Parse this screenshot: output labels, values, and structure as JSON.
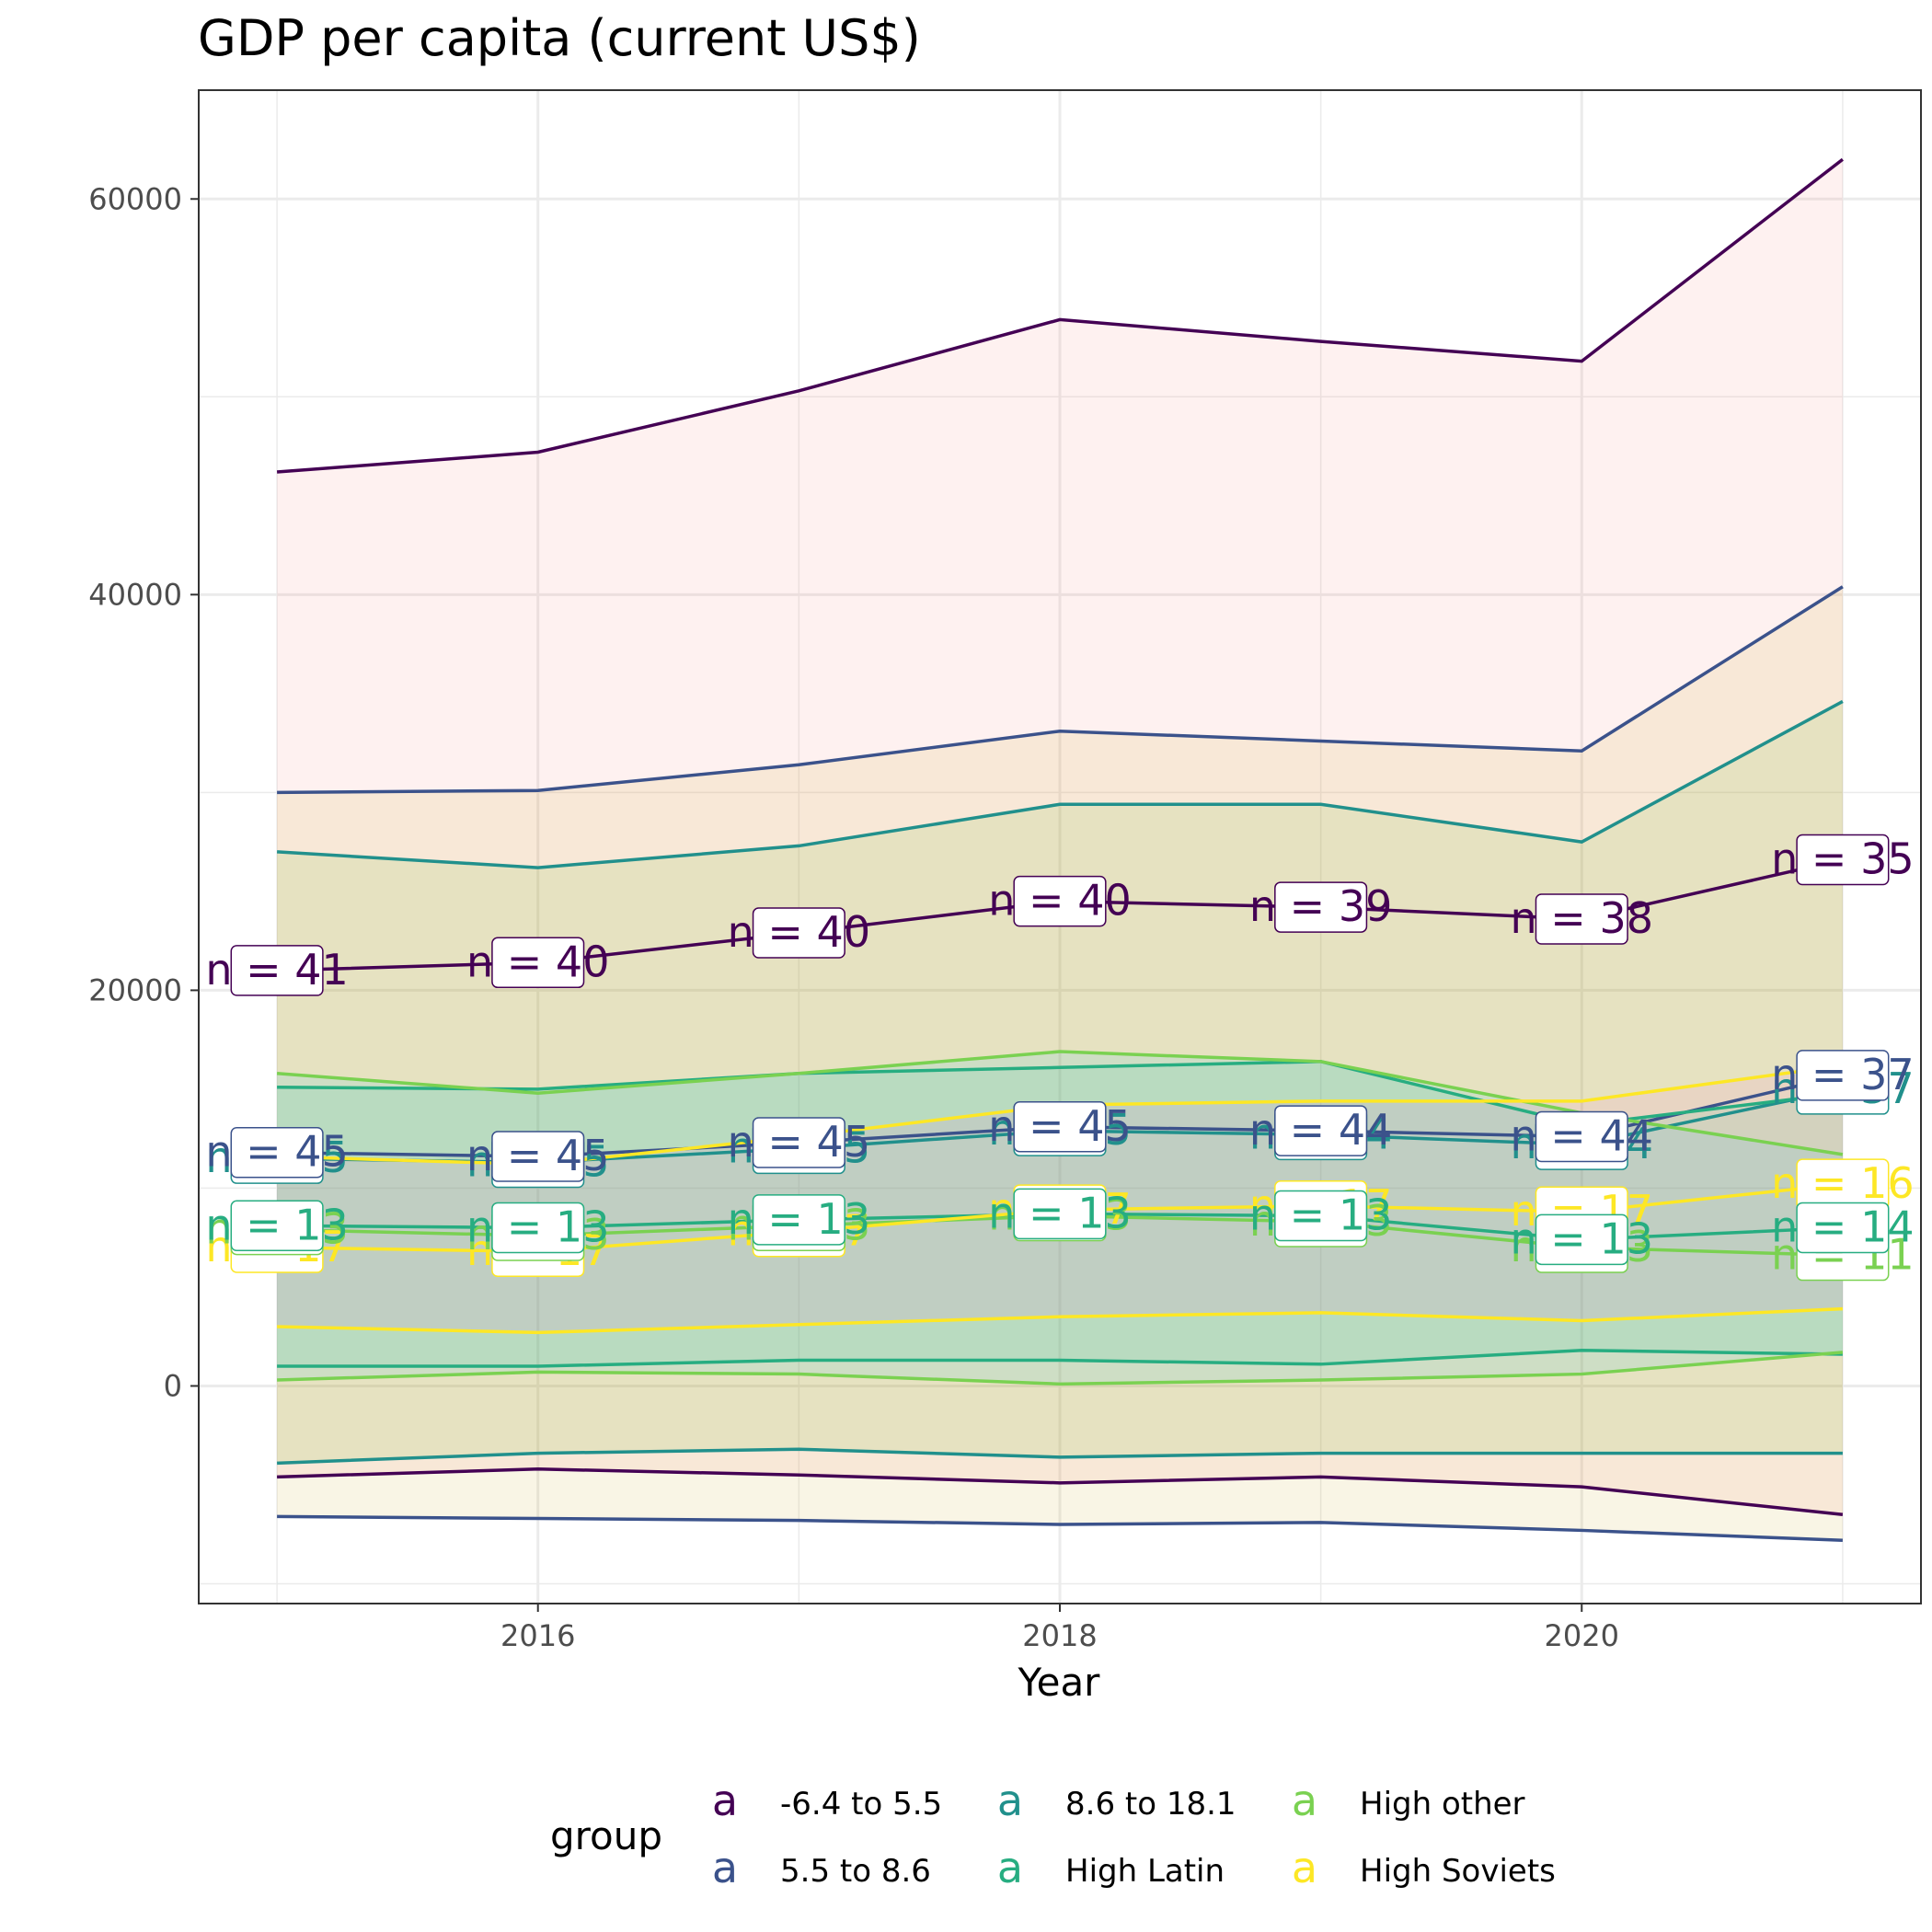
{
  "chart_data": {
    "type": "line",
    "title": "GDP per capita (current US$)",
    "xlabel": "Year",
    "ylabel": "",
    "x": [
      2015,
      2016,
      2017,
      2018,
      2019,
      2020,
      2021
    ],
    "xlim": [
      2014.7,
      2021.3
    ],
    "ylim": [
      -11000,
      65500
    ],
    "xticks": [
      2016,
      2018,
      2020
    ],
    "yticks": [
      0,
      20000,
      40000,
      60000
    ],
    "grid": true,
    "legend": {
      "title": "group",
      "position": "bottom",
      "key_glyph": "a"
    },
    "series": [
      {
        "name": "-6.4 to 5.5",
        "color": "#440154",
        "fill": "#f8766d",
        "mean": [
          21000,
          21400,
          22900,
          24500,
          24200,
          23600,
          26600
        ],
        "upper": [
          46200,
          47200,
          50300,
          53900,
          52800,
          51800,
          62000
        ],
        "lower": [
          -4600,
          -4200,
          -4500,
          -4900,
          -4600,
          -5100,
          -6500
        ],
        "n_labels": [
          "n = 41",
          "n = 40",
          "n = 40",
          "n = 40",
          "n = 39",
          "n = 38",
          "n = 35"
        ]
      },
      {
        "name": "5.5 to 8.6",
        "color": "#3b528b",
        "fill": "#c49a00",
        "mean": [
          11800,
          11600,
          12300,
          13100,
          12900,
          12600,
          15700
        ],
        "upper": [
          30000,
          30100,
          31400,
          33100,
          32600,
          32100,
          40400
        ],
        "lower": [
          -6600,
          -6700,
          -6800,
          -7000,
          -6900,
          -7300,
          -7800
        ],
        "n_labels": [
          "n = 45",
          "n = 45",
          "n = 45",
          "n = 45",
          "n = 44",
          "n = 44",
          "n = 37"
        ]
      },
      {
        "name": "8.6 to 18.1",
        "color": "#21908c",
        "fill": "#53b400",
        "mean": [
          11500,
          11300,
          12000,
          12900,
          12700,
          12200,
          15000
        ],
        "upper": [
          27000,
          26200,
          27300,
          29400,
          29400,
          27500,
          34600
        ],
        "lower": [
          -3900,
          -3400,
          -3200,
          -3600,
          -3400,
          -3400,
          -3400
        ],
        "n_labels": [
          "n = 45",
          "n = 45",
          "n = 45",
          "n = 45",
          "n = 44",
          "n = 44",
          "n = 37"
        ]
      },
      {
        "name": "High Latin",
        "color": "#27ad81",
        "fill": "#00c094",
        "mean": [
          8100,
          8000,
          8400,
          8700,
          8600,
          7400,
          8000
        ],
        "upper": [
          15100,
          15000,
          15800,
          16100,
          16400,
          13200,
          14800
        ],
        "lower": [
          1000,
          1000,
          1300,
          1300,
          1100,
          1800,
          1600
        ],
        "n_labels": [
          "n = 13",
          "n = 13",
          "n = 13",
          "n = 13",
          "n = 13",
          "n = 13",
          "n = 14"
        ]
      },
      {
        "name": "High other",
        "color": "#7ad151",
        "fill": "#00b6eb",
        "mean": [
          7900,
          7600,
          8100,
          8600,
          8300,
          7000,
          6600
        ],
        "upper": [
          15800,
          14800,
          15800,
          16900,
          16400,
          13800,
          11700
        ],
        "lower": [
          300,
          700,
          600,
          100,
          300,
          600,
          1700
        ],
        "n_labels": [
          "n = 13",
          "n = 13",
          "n = 13",
          "n = 13",
          "n = 13",
          "n = 13",
          "n = 11"
        ]
      },
      {
        "name": "High Soviets",
        "color": "#fde725",
        "fill": "#fb61d7",
        "mean": [
          7000,
          6800,
          7800,
          8900,
          9100,
          8800,
          10200
        ],
        "upper": [
          11600,
          11200,
          12600,
          14200,
          14400,
          14400,
          16200
        ],
        "lower": [
          3000,
          2700,
          3100,
          3500,
          3700,
          3300,
          3900
        ],
        "n_labels": [
          "n = 17",
          "n = 17",
          "n = 17",
          "n = 17",
          "n = 17",
          "n = 17",
          "n = 16"
        ]
      }
    ]
  }
}
